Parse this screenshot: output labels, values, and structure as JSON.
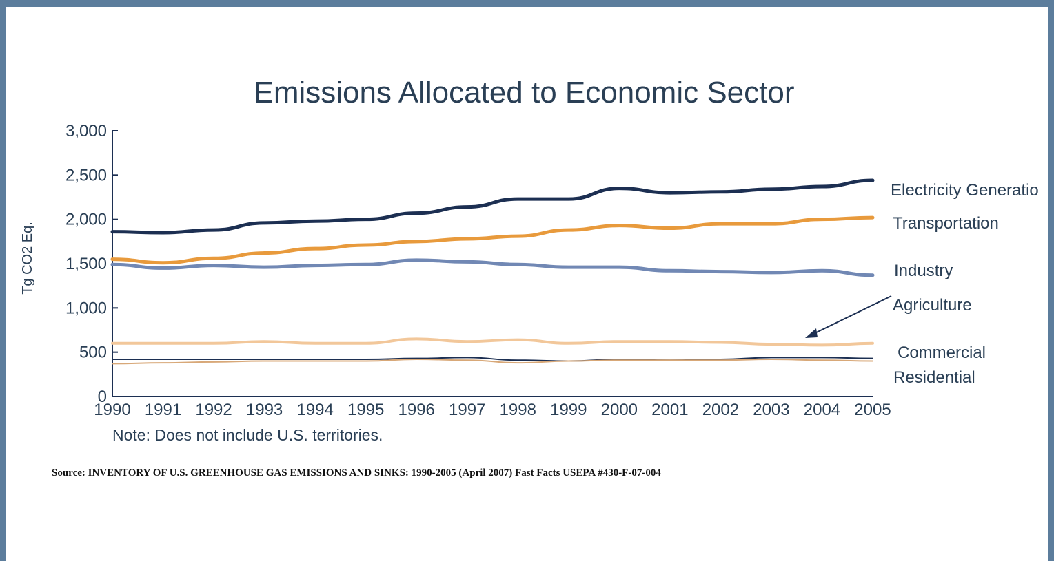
{
  "chart_data": {
    "type": "line",
    "title": "Emissions Allocated to Economic Sector",
    "xlabel": "",
    "ylabel": "Tg CO2 Eq.",
    "ylim": [
      0,
      3000
    ],
    "y_ticks": [
      "0",
      "500",
      "1,000",
      "1,500",
      "2,000",
      "2,500",
      "3,000"
    ],
    "categories": [
      "1990",
      "1991",
      "1992",
      "1993",
      "1994",
      "1995",
      "1996",
      "1997",
      "1998",
      "1999",
      "2000",
      "2001",
      "2002",
      "2003",
      "2004",
      "2005"
    ],
    "series": [
      {
        "name": "Electricity Generatio",
        "color": "#1c2f52",
        "values": [
          1860,
          1850,
          1880,
          1960,
          1980,
          2000,
          2070,
          2140,
          2230,
          2230,
          2350,
          2300,
          2310,
          2340,
          2370,
          2440
        ]
      },
      {
        "name": "Transportation",
        "color": "#e89a3c",
        "values": [
          1550,
          1510,
          1560,
          1620,
          1670,
          1710,
          1750,
          1780,
          1810,
          1880,
          1930,
          1900,
          1950,
          1950,
          2000,
          2020
        ]
      },
      {
        "name": "Industry",
        "color": "#7188b4",
        "values": [
          1490,
          1450,
          1480,
          1460,
          1480,
          1490,
          1540,
          1520,
          1490,
          1460,
          1460,
          1420,
          1410,
          1400,
          1420,
          1370
        ]
      },
      {
        "name": "Agriculture",
        "color": "#f2c79a",
        "values": [
          600,
          600,
          600,
          620,
          600,
          600,
          650,
          620,
          640,
          600,
          620,
          620,
          610,
          590,
          580,
          600
        ]
      },
      {
        "name": "Commercial",
        "color": "#1c2f52",
        "values": [
          420,
          420,
          420,
          420,
          420,
          420,
          430,
          440,
          410,
          400,
          420,
          410,
          420,
          440,
          440,
          430
        ]
      },
      {
        "name": "Residential",
        "color": "#d8a878",
        "values": [
          370,
          380,
          390,
          400,
          400,
          400,
          420,
          410,
          380,
          400,
          410,
          410,
          410,
          420,
          410,
          400
        ]
      }
    ],
    "grid": false,
    "legend": "right, labels at line ends"
  },
  "note": "Note: Does not include U.S. territories.",
  "source": "Source: INVENTORY OF U.S. GREENHOUSE GAS EMISSIONS AND SINKS: 1990-2005 (April 2007) Fast Facts USEPA #430-F-07-004"
}
